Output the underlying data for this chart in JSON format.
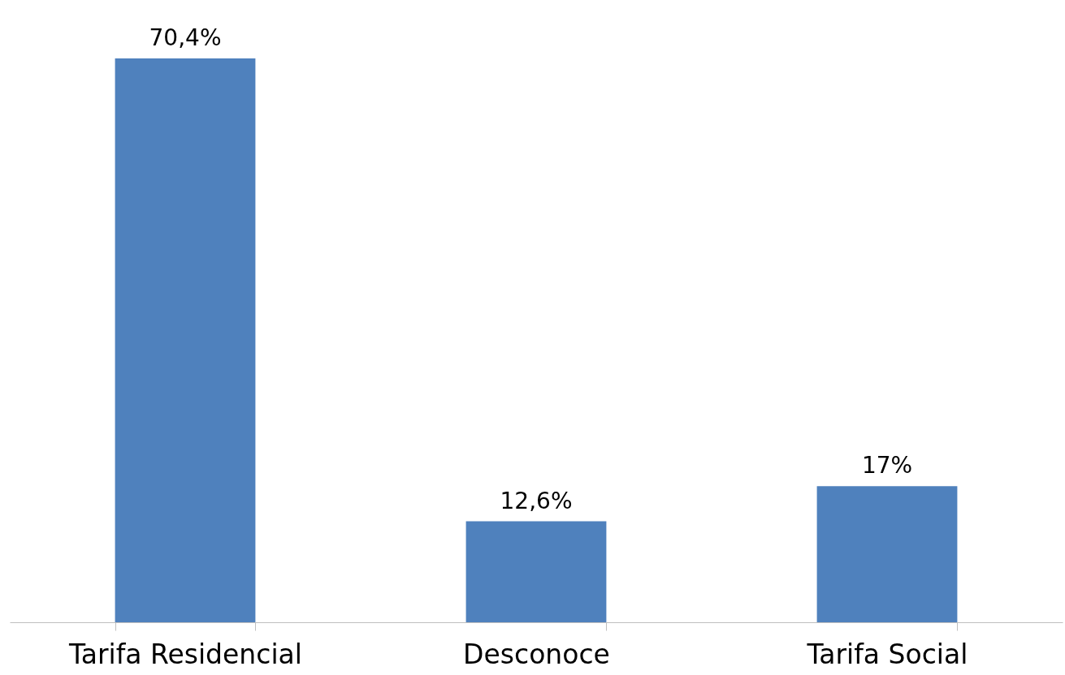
{
  "chart_data": {
    "type": "bar",
    "categories": [
      "Tarifa Residencial",
      "Desconoce",
      "Tarifa Social"
    ],
    "values": [
      70.4,
      12.6,
      17
    ],
    "value_labels": [
      "70,4%",
      "12,6%",
      "17%"
    ],
    "color": "#4f81bd"
  }
}
